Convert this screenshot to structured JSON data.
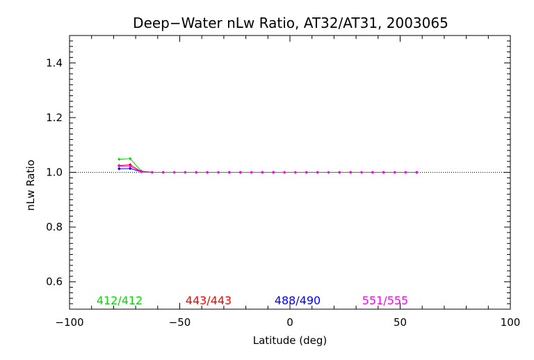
{
  "chart_data": {
    "type": "line",
    "title": "Deep−Water nLw Ratio, AT32/AT31, 2003065",
    "xlabel": "Latitude (deg)",
    "ylabel": "nLw Ratio",
    "xlim": [
      -100,
      100
    ],
    "ylim": [
      0.5,
      1.5
    ],
    "xticks": [
      -100,
      -50,
      0,
      50,
      100
    ],
    "xtick_labels": [
      "−100",
      "−50",
      "0",
      "50",
      "100"
    ],
    "yticks": [
      0.6,
      0.8,
      1.0,
      1.2,
      1.4
    ],
    "ytick_labels": [
      "0.6",
      "0.8",
      "1.0",
      "1.2",
      "1.4"
    ],
    "reference_line": 1.0,
    "grid": false,
    "legend_position": "bottom-inside",
    "series": [
      {
        "name": "412/412",
        "color": "#00dd00",
        "x": [
          -77.5,
          -72.5,
          -67.5,
          -62.5,
          -57.5,
          -52.5,
          -47.5,
          -42.5,
          -37.5,
          -32.5,
          -27.5,
          -22.5,
          -17.5,
          -12.5,
          -7.5,
          -2.5,
          2.5,
          7.5,
          12.5,
          17.5,
          22.5,
          27.5,
          32.5,
          37.5,
          42.5,
          47.5,
          52.5,
          57.5
        ],
        "y": [
          1.048,
          1.05,
          1.005,
          1.0,
          1.0,
          1.0,
          1.0,
          1.0,
          1.0,
          1.0,
          1.0,
          1.0,
          1.0,
          1.0,
          1.0,
          1.0,
          1.0,
          1.0,
          1.0,
          1.0,
          1.0,
          1.0,
          1.0,
          1.0,
          1.0,
          1.0,
          1.0,
          1.0
        ]
      },
      {
        "name": "443/443",
        "color": "#ff0000",
        "x": [
          -77.5,
          -72.5,
          -67.5,
          -62.5,
          -57.5,
          -52.5,
          -47.5,
          -42.5,
          -37.5,
          -32.5,
          -27.5,
          -22.5,
          -17.5,
          -12.5,
          -7.5,
          -2.5,
          2.5,
          7.5,
          12.5,
          17.5,
          22.5,
          27.5,
          32.5,
          37.5,
          42.5,
          47.5,
          52.5,
          57.5
        ],
        "y": [
          1.025,
          1.028,
          1.003,
          1.0,
          1.0,
          1.0,
          1.0,
          1.0,
          1.0,
          1.0,
          1.0,
          1.0,
          1.0,
          1.0,
          1.0,
          1.0,
          1.0,
          1.0,
          1.0,
          1.0,
          1.0,
          1.0,
          1.0,
          1.0,
          1.0,
          1.0,
          1.0,
          1.0
        ]
      },
      {
        "name": "488/490",
        "color": "#0000ff",
        "x": [
          -77.5,
          -72.5,
          -67.5,
          -62.5,
          -57.5,
          -52.5,
          -47.5,
          -42.5,
          -37.5,
          -32.5,
          -27.5,
          -22.5,
          -17.5,
          -12.5,
          -7.5,
          -2.5,
          2.5,
          7.5,
          12.5,
          17.5,
          22.5,
          27.5,
          32.5,
          37.5,
          42.5,
          47.5,
          52.5,
          57.5
        ],
        "y": [
          1.013,
          1.014,
          1.002,
          1.0,
          1.0,
          1.0,
          1.0,
          1.0,
          1.0,
          1.0,
          1.0,
          1.0,
          1.0,
          1.0,
          1.0,
          1.0,
          1.0,
          1.0,
          1.0,
          1.0,
          1.0,
          1.0,
          1.0,
          1.0,
          1.0,
          1.0,
          1.0,
          1.0
        ]
      },
      {
        "name": "551/555",
        "color": "#ff00ff",
        "x": [
          -77.5,
          -72.5,
          -67.5,
          -62.5,
          -57.5,
          -52.5,
          -47.5,
          -42.5,
          -37.5,
          -32.5,
          -27.5,
          -22.5,
          -17.5,
          -12.5,
          -7.5,
          -2.5,
          2.5,
          7.5,
          12.5,
          17.5,
          22.5,
          27.5,
          32.5,
          37.5,
          42.5,
          47.5,
          52.5,
          57.5
        ],
        "y": [
          1.023,
          1.022,
          1.002,
          1.0,
          1.0,
          1.0,
          1.0,
          1.0,
          1.0,
          1.0,
          1.0,
          1.0,
          1.0,
          1.0,
          1.0,
          1.0,
          1.0,
          1.0,
          1.0,
          1.0,
          1.0,
          1.0,
          1.0,
          1.0,
          1.0,
          1.0,
          1.0,
          1.0
        ]
      }
    ]
  }
}
